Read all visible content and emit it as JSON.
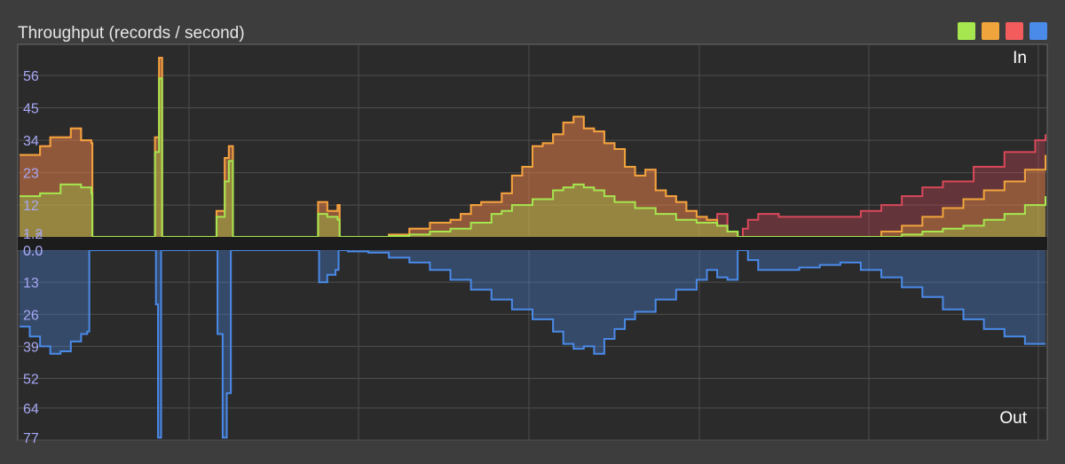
{
  "title": "Throughput (records / second)",
  "legend": [
    {
      "color": "#a6e64f"
    },
    {
      "color": "#f0a43c"
    },
    {
      "color": "#f25c5c"
    },
    {
      "color": "#4a8ae8"
    }
  ],
  "chart_data": [
    {
      "type": "area",
      "label": "In",
      "ylim": [
        1.2,
        67
      ],
      "yticks": [
        "56",
        "45",
        "34",
        "23",
        "12",
        "1.2"
      ],
      "ytick_values": [
        56,
        45,
        34,
        23,
        12,
        1.2
      ],
      "grid": true,
      "xlim": [
        0,
        100
      ],
      "series": [
        {
          "color": "#d9485a",
          "points": [
            [
              0,
              29
            ],
            [
              2,
              32
            ],
            [
              3,
              35
            ],
            [
              5,
              38
            ],
            [
              6,
              34
            ],
            [
              7,
              33
            ],
            [
              7.1,
              1.2
            ],
            [
              13,
              1.2
            ],
            [
              13.2,
              35
            ],
            [
              13.6,
              62
            ],
            [
              13.9,
              1.2
            ],
            [
              19,
              1.2
            ],
            [
              19.2,
              10
            ],
            [
              20,
              28
            ],
            [
              20.4,
              32
            ],
            [
              20.8,
              1.2
            ],
            [
              29,
              1.2
            ],
            [
              29.1,
              13
            ],
            [
              30,
              10
            ],
            [
              31,
              12
            ],
            [
              31.2,
              1.2
            ],
            [
              34,
              1.2
            ],
            [
              36,
              2
            ],
            [
              38,
              4
            ],
            [
              40,
              6
            ],
            [
              42,
              7
            ],
            [
              43,
              9
            ],
            [
              44,
              12
            ],
            [
              45,
              13
            ],
            [
              47,
              16
            ],
            [
              48,
              22
            ],
            [
              49,
              25
            ],
            [
              50,
              32
            ],
            [
              51,
              33
            ],
            [
              52,
              36
            ],
            [
              53,
              40
            ],
            [
              54,
              42
            ],
            [
              55,
              38
            ],
            [
              56,
              37
            ],
            [
              57,
              33
            ],
            [
              58,
              31
            ],
            [
              59,
              25
            ],
            [
              60,
              22
            ],
            [
              61,
              24
            ],
            [
              62,
              17
            ],
            [
              63,
              15
            ],
            [
              64,
              13
            ],
            [
              65,
              10
            ],
            [
              66,
              8
            ],
            [
              67,
              7
            ],
            [
              68,
              9
            ],
            [
              69,
              3
            ],
            [
              70,
              1.2
            ],
            [
              70.5,
              4
            ],
            [
              71,
              7
            ],
            [
              72,
              9
            ],
            [
              74,
              8
            ],
            [
              80,
              8
            ],
            [
              82,
              10
            ],
            [
              84,
              12
            ],
            [
              86,
              15
            ],
            [
              88,
              18
            ],
            [
              90,
              20
            ],
            [
              93,
              25
            ],
            [
              96,
              30
            ],
            [
              99,
              34
            ],
            [
              100,
              36
            ]
          ]
        },
        {
          "color": "#f0a43c",
          "points": [
            [
              0,
              29
            ],
            [
              2,
              32
            ],
            [
              3,
              35
            ],
            [
              5,
              38
            ],
            [
              6,
              34
            ],
            [
              7,
              33
            ],
            [
              7.1,
              1.2
            ],
            [
              13,
              1.2
            ],
            [
              13.2,
              35
            ],
            [
              13.6,
              62
            ],
            [
              13.9,
              1.2
            ],
            [
              19,
              1.2
            ],
            [
              19.2,
              10
            ],
            [
              20,
              28
            ],
            [
              20.4,
              32
            ],
            [
              20.8,
              1.2
            ],
            [
              29,
              1.2
            ],
            [
              29.1,
              13
            ],
            [
              30,
              10
            ],
            [
              31,
              12
            ],
            [
              31.2,
              1.2
            ],
            [
              34,
              1.2
            ],
            [
              36,
              2
            ],
            [
              38,
              4
            ],
            [
              40,
              6
            ],
            [
              42,
              7
            ],
            [
              43,
              9
            ],
            [
              44,
              12
            ],
            [
              45,
              13
            ],
            [
              47,
              16
            ],
            [
              48,
              22
            ],
            [
              49,
              25
            ],
            [
              50,
              32
            ],
            [
              51,
              33
            ],
            [
              52,
              36
            ],
            [
              53,
              40
            ],
            [
              54,
              42
            ],
            [
              55,
              38
            ],
            [
              56,
              37
            ],
            [
              57,
              33
            ],
            [
              58,
              31
            ],
            [
              59,
              25
            ],
            [
              60,
              22
            ],
            [
              61,
              24
            ],
            [
              62,
              17
            ],
            [
              63,
              15
            ],
            [
              64,
              13
            ],
            [
              65,
              10
            ],
            [
              66,
              8
            ],
            [
              67,
              7
            ],
            [
              68,
              5
            ],
            [
              69,
              3
            ],
            [
              70,
              1.2
            ],
            [
              83,
              1.2
            ],
            [
              84,
              3
            ],
            [
              86,
              5
            ],
            [
              88,
              8
            ],
            [
              90,
              11
            ],
            [
              92,
              14
            ],
            [
              94,
              17
            ],
            [
              96,
              20
            ],
            [
              98,
              24
            ],
            [
              100,
              29
            ]
          ]
        },
        {
          "color": "#a6e64f",
          "points": [
            [
              0,
              15
            ],
            [
              2,
              16
            ],
            [
              4,
              19
            ],
            [
              6,
              18
            ],
            [
              7,
              16
            ],
            [
              7.1,
              1.2
            ],
            [
              13,
              1.2
            ],
            [
              13.2,
              30
            ],
            [
              13.6,
              55
            ],
            [
              13.9,
              1.2
            ],
            [
              19,
              1.2
            ],
            [
              19.2,
              8
            ],
            [
              20,
              20
            ],
            [
              20.4,
              27
            ],
            [
              20.8,
              1.2
            ],
            [
              29,
              1.2
            ],
            [
              29.1,
              9
            ],
            [
              30,
              8
            ],
            [
              31,
              7
            ],
            [
              31.2,
              1.2
            ],
            [
              34,
              1.2
            ],
            [
              36,
              1.5
            ],
            [
              38,
              2
            ],
            [
              40,
              3
            ],
            [
              42,
              4
            ],
            [
              44,
              6
            ],
            [
              46,
              9
            ],
            [
              47,
              10
            ],
            [
              48,
              12
            ],
            [
              50,
              14
            ],
            [
              52,
              17
            ],
            [
              53,
              18
            ],
            [
              54,
              19
            ],
            [
              55,
              18
            ],
            [
              56,
              17
            ],
            [
              57,
              15
            ],
            [
              58,
              13
            ],
            [
              60,
              11
            ],
            [
              62,
              9
            ],
            [
              64,
              7
            ],
            [
              66,
              6
            ],
            [
              68,
              5
            ],
            [
              69,
              3
            ],
            [
              70,
              1.2
            ],
            [
              84,
              1.2
            ],
            [
              86,
              2
            ],
            [
              88,
              3
            ],
            [
              90,
              4
            ],
            [
              92,
              5
            ],
            [
              94,
              7
            ],
            [
              96,
              9
            ],
            [
              98,
              12
            ],
            [
              100,
              15
            ]
          ]
        }
      ]
    },
    {
      "type": "area",
      "label": "Out",
      "ylim": [
        0,
        77
      ],
      "yticks": [
        "0.0",
        "13",
        "26",
        "39",
        "52",
        "64",
        "77"
      ],
      "ytick_values": [
        0,
        13,
        26,
        39,
        52,
        64,
        77
      ],
      "grid": true,
      "xlim": [
        0,
        100
      ],
      "series": [
        {
          "color": "#4a8ae8",
          "points": [
            [
              0,
              31
            ],
            [
              1,
              35
            ],
            [
              2,
              39
            ],
            [
              3,
              42
            ],
            [
              4,
              41
            ],
            [
              5,
              37
            ],
            [
              6,
              34
            ],
            [
              6.6,
              33
            ],
            [
              6.8,
              0
            ],
            [
              13,
              0
            ],
            [
              13.3,
              22
            ],
            [
              13.5,
              76
            ],
            [
              13.8,
              0
            ],
            [
              19,
              0
            ],
            [
              19.3,
              34
            ],
            [
              19.8,
              76
            ],
            [
              20.2,
              58
            ],
            [
              20.6,
              0
            ],
            [
              29,
              0
            ],
            [
              29.2,
              13
            ],
            [
              30,
              10
            ],
            [
              30.8,
              8
            ],
            [
              31.1,
              0
            ],
            [
              32,
              0.5
            ],
            [
              34,
              1
            ],
            [
              36,
              3
            ],
            [
              38,
              5
            ],
            [
              40,
              8
            ],
            [
              42,
              12
            ],
            [
              44,
              16
            ],
            [
              46,
              20
            ],
            [
              48,
              24
            ],
            [
              50,
              28
            ],
            [
              52,
              33
            ],
            [
              53,
              38
            ],
            [
              54,
              40
            ],
            [
              55,
              39
            ],
            [
              56,
              42
            ],
            [
              57,
              36
            ],
            [
              58,
              32
            ],
            [
              59,
              28
            ],
            [
              60,
              25
            ],
            [
              62,
              20
            ],
            [
              64,
              16
            ],
            [
              66,
              12
            ],
            [
              67,
              8
            ],
            [
              68,
              11
            ],
            [
              69,
              12
            ],
            [
              70,
              0
            ],
            [
              71,
              4
            ],
            [
              72,
              8
            ],
            [
              74,
              8
            ],
            [
              76,
              7
            ],
            [
              78,
              6
            ],
            [
              80,
              5
            ],
            [
              82,
              8
            ],
            [
              84,
              11
            ],
            [
              86,
              15
            ],
            [
              88,
              19
            ],
            [
              90,
              24
            ],
            [
              92,
              28
            ],
            [
              94,
              32
            ],
            [
              96,
              35
            ],
            [
              98,
              38
            ],
            [
              100,
              38
            ]
          ]
        }
      ]
    }
  ]
}
